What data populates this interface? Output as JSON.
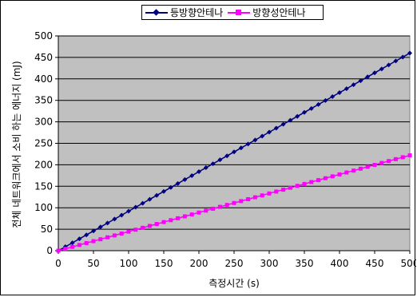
{
  "chart_data": {
    "type": "line",
    "title": "",
    "xlabel": "측정시간 (s)",
    "ylabel": "전체 네트워크에서 소비 하는 에너지 (mJ)",
    "xlim": [
      0,
      500
    ],
    "ylim": [
      0,
      500
    ],
    "xticks": [
      "0",
      "50",
      "100",
      "150",
      "200",
      "250",
      "300",
      "350",
      "400",
      "450",
      "500"
    ],
    "yticks": [
      "0",
      "50",
      "100",
      "150",
      "200",
      "250",
      "300",
      "350",
      "400",
      "450",
      "500"
    ],
    "grid": "horizontal",
    "plot_background": "#c0c0c0",
    "legend_position": "top",
    "series": [
      {
        "name": "등방향안테나",
        "color": "#000080",
        "marker": "diamond",
        "x_start": 0,
        "x_end": 500,
        "x_step": 10,
        "y_start": 0,
        "y_end": 460
      },
      {
        "name": "방향성안테나",
        "color": "#ff00ff",
        "marker": "square",
        "x_start": 0,
        "x_end": 500,
        "x_step": 10,
        "y_start": 0,
        "y_end": 222
      }
    ]
  }
}
